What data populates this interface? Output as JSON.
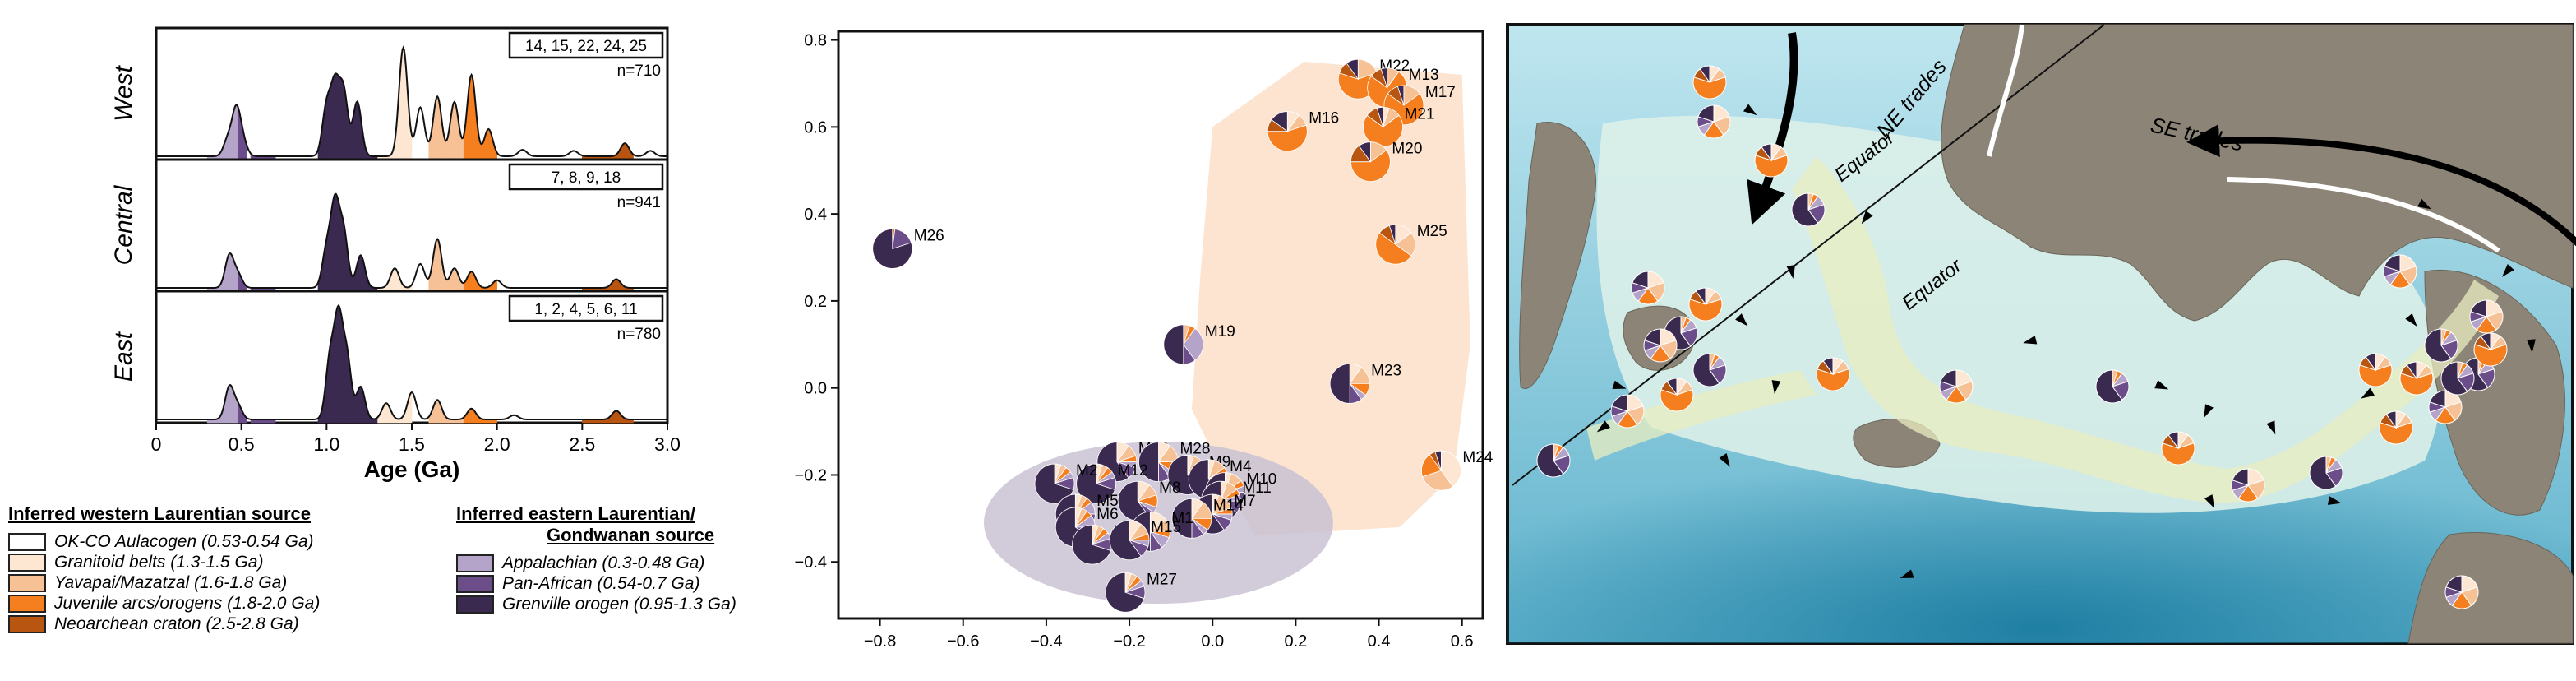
{
  "chart_data": [
    {
      "type": "area",
      "xlabel": "Age (Ga)",
      "xlim": [
        0,
        3.0
      ],
      "x_ticks": [
        "0",
        "0.5",
        "1.0",
        "1.5",
        "2.0",
        "2.5",
        "3.0"
      ],
      "panels": [
        {
          "region": "West",
          "samples": "14, 15, 22, 24, 25",
          "n": "n=710",
          "peaks": [
            [
              0.42,
              0.15
            ],
            [
              0.47,
              0.42
            ],
            [
              0.51,
              0.12
            ],
            [
              1.0,
              0.45
            ],
            [
              1.05,
              0.62
            ],
            [
              1.1,
              0.58
            ],
            [
              1.18,
              0.5
            ],
            [
              1.45,
              1.0
            ],
            [
              1.55,
              0.45
            ],
            [
              1.65,
              0.55
            ],
            [
              1.75,
              0.5
            ],
            [
              1.85,
              0.75
            ],
            [
              1.95,
              0.25
            ],
            [
              2.15,
              0.06
            ],
            [
              2.45,
              0.05
            ],
            [
              2.75,
              0.12
            ],
            [
              2.9,
              0.05
            ]
          ]
        },
        {
          "region": "Central",
          "samples": "7, 8, 9, 18",
          "n": "n=941",
          "peaks": [
            [
              0.43,
              0.3
            ],
            [
              0.48,
              0.12
            ],
            [
              1.0,
              0.35
            ],
            [
              1.05,
              0.75
            ],
            [
              1.1,
              0.5
            ],
            [
              1.2,
              0.3
            ],
            [
              1.4,
              0.18
            ],
            [
              1.55,
              0.22
            ],
            [
              1.65,
              0.45
            ],
            [
              1.75,
              0.18
            ],
            [
              1.85,
              0.15
            ],
            [
              2.0,
              0.07
            ],
            [
              2.7,
              0.08
            ]
          ]
        },
        {
          "region": "East",
          "samples": "1, 2, 4, 5, 6, 11",
          "n": "n=780",
          "peaks": [
            [
              0.43,
              0.3
            ],
            [
              0.48,
              0.12
            ],
            [
              1.02,
              0.55
            ],
            [
              1.07,
              0.9
            ],
            [
              1.12,
              0.55
            ],
            [
              1.2,
              0.3
            ],
            [
              1.35,
              0.15
            ],
            [
              1.5,
              0.25
            ],
            [
              1.65,
              0.18
            ],
            [
              1.85,
              0.1
            ],
            [
              2.1,
              0.04
            ],
            [
              2.7,
              0.08
            ]
          ]
        }
      ],
      "legend_west_title": "Inferred western Laurentian source",
      "legend_east_title_1": "Inferred eastern Laurentian/",
      "legend_east_title_2": "Gondwanan source",
      "legend_west": [
        {
          "label": "OK-CO Aulacogen (0.53-0.54 Ga)",
          "color": "#ffffff"
        },
        {
          "label": "Granitoid belts (1.3-1.5 Ga)",
          "color": "#fde6d2"
        },
        {
          "label": "Yavapai/Mazatzal (1.6-1.8 Ga)",
          "color": "#f7c196"
        },
        {
          "label": "Juvenile arcs/orogens (1.8-2.0 Ga)",
          "color": "#f57f1f"
        },
        {
          "label": "Neoarchean craton (2.5-2.8 Ga)",
          "color": "#b85510"
        }
      ],
      "legend_east": [
        {
          "label": "Appalachian (0.3-0.48 Ga)",
          "color": "#b5a4c9"
        },
        {
          "label": "Pan-African (0.54-0.7 Ga)",
          "color": "#6b4d8a"
        },
        {
          "label": "Grenville orogen (0.95-1.3 Ga)",
          "color": "#3b2a50"
        }
      ]
    },
    {
      "type": "scatter",
      "xlim": [
        -0.9,
        0.65
      ],
      "ylim": [
        -0.53,
        0.82
      ],
      "x_ticks": [
        -0.8,
        -0.6,
        -0.4,
        -0.2,
        0.0,
        0.2,
        0.4,
        0.6
      ],
      "y_ticks": [
        -0.4,
        -0.2,
        0.0,
        0.2,
        0.4,
        0.6,
        0.8
      ],
      "points": [
        {
          "label": "M22",
          "x": 0.35,
          "y": 0.71,
          "w": [
            0,
            0,
            0.2,
            0.6,
            0.1,
            0,
            0,
            0.1
          ]
        },
        {
          "label": "M13",
          "x": 0.42,
          "y": 0.69,
          "w": [
            0,
            0,
            0.1,
            0.75,
            0.1,
            0,
            0,
            0.05
          ]
        },
        {
          "label": "M17",
          "x": 0.46,
          "y": 0.65,
          "w": [
            0,
            0,
            0.15,
            0.7,
            0.1,
            0,
            0,
            0.05
          ]
        },
        {
          "label": "M16",
          "x": 0.18,
          "y": 0.59,
          "w": [
            0,
            0.1,
            0.1,
            0.55,
            0.1,
            0,
            0,
            0.15
          ]
        },
        {
          "label": "M21",
          "x": 0.41,
          "y": 0.6,
          "w": [
            0,
            0.05,
            0.1,
            0.7,
            0.1,
            0,
            0,
            0.05
          ]
        },
        {
          "label": "M20",
          "x": 0.38,
          "y": 0.52,
          "w": [
            0,
            0,
            0.15,
            0.6,
            0.15,
            0,
            0,
            0.1
          ]
        },
        {
          "label": "M25",
          "x": 0.44,
          "y": 0.33,
          "w": [
            0,
            0.15,
            0.2,
            0.5,
            0.1,
            0,
            0,
            0.05
          ]
        },
        {
          "label": "M26",
          "x": -0.77,
          "y": 0.32,
          "w": [
            0,
            0,
            0,
            0.02,
            0,
            0,
            0.18,
            0.8
          ]
        },
        {
          "label": "M19",
          "x": -0.07,
          "y": 0.1,
          "w": [
            0,
            0,
            0.05,
            0.05,
            0,
            0.3,
            0.1,
            0.5
          ]
        },
        {
          "label": "M23",
          "x": 0.33,
          "y": 0.01,
          "w": [
            0,
            0.1,
            0.15,
            0.1,
            0,
            0.05,
            0.1,
            0.5
          ]
        },
        {
          "label": "M24",
          "x": 0.55,
          "y": -0.19,
          "w": [
            0,
            0.4,
            0.3,
            0.2,
            0.05,
            0,
            0,
            0.05
          ]
        },
        {
          "label": "M18",
          "x": -0.23,
          "y": -0.17,
          "w": [
            0,
            0.1,
            0.1,
            0.05,
            0,
            0.05,
            0.1,
            0.6
          ]
        },
        {
          "label": "M28",
          "x": -0.13,
          "y": -0.17,
          "w": [
            0,
            0.1,
            0.15,
            0.1,
            0,
            0.05,
            0.1,
            0.5
          ]
        },
        {
          "label": "M12",
          "x": -0.28,
          "y": -0.22,
          "w": [
            0,
            0.05,
            0.05,
            0.05,
            0,
            0.05,
            0.1,
            0.7
          ]
        },
        {
          "label": "M9",
          "x": -0.06,
          "y": -0.2,
          "w": [
            0,
            0.05,
            0.1,
            0.05,
            0,
            0.05,
            0.1,
            0.65
          ]
        },
        {
          "label": "M4",
          "x": -0.01,
          "y": -0.21,
          "w": [
            0,
            0.05,
            0.1,
            0.05,
            0,
            0.05,
            0.1,
            0.65
          ]
        },
        {
          "label": "M10",
          "x": 0.03,
          "y": -0.24,
          "w": [
            0,
            0.05,
            0.1,
            0.05,
            0,
            0.05,
            0.1,
            0.65
          ]
        },
        {
          "label": "M11",
          "x": 0.02,
          "y": -0.26,
          "w": [
            0,
            0.05,
            0.1,
            0.05,
            0,
            0.05,
            0.1,
            0.65
          ]
        },
        {
          "label": "M2",
          "x": -0.38,
          "y": -0.22,
          "w": [
            0,
            0.05,
            0.05,
            0.05,
            0,
            0.05,
            0.1,
            0.7
          ]
        },
        {
          "label": "M8",
          "x": -0.18,
          "y": -0.26,
          "w": [
            0,
            0.1,
            0.1,
            0.1,
            0,
            0.05,
            0.05,
            0.6
          ]
        },
        {
          "label": "M7",
          "x": 0.0,
          "y": -0.29,
          "w": [
            0,
            0.05,
            0.15,
            0.05,
            0,
            0.05,
            0.1,
            0.6
          ]
        },
        {
          "label": "M5",
          "x": -0.33,
          "y": -0.29,
          "w": [
            0,
            0.05,
            0.05,
            0.05,
            0,
            0.1,
            0.1,
            0.65
          ]
        },
        {
          "label": "M6",
          "x": -0.33,
          "y": -0.32,
          "w": [
            0,
            0.05,
            0.05,
            0.05,
            0,
            0.1,
            0.1,
            0.65
          ]
        },
        {
          "label": "M14",
          "x": -0.05,
          "y": -0.3,
          "w": [
            0,
            0.1,
            0.15,
            0.1,
            0,
            0.05,
            0.1,
            0.5
          ]
        },
        {
          "label": "M1",
          "x": -0.15,
          "y": -0.33,
          "w": [
            0,
            0.15,
            0.1,
            0.05,
            0,
            0.1,
            0.1,
            0.5
          ]
        },
        {
          "label": "M3",
          "x": -0.29,
          "y": -0.36,
          "w": [
            0,
            0.05,
            0.05,
            0.05,
            0,
            0.05,
            0.1,
            0.7
          ]
        },
        {
          "label": "M15",
          "x": -0.2,
          "y": -0.35,
          "w": [
            0,
            0.1,
            0.1,
            0.05,
            0,
            0.05,
            0.1,
            0.6
          ]
        },
        {
          "label": "M27",
          "x": -0.21,
          "y": -0.47,
          "w": [
            0,
            0.05,
            0.05,
            0.05,
            0,
            0.05,
            0.1,
            0.7
          ]
        }
      ]
    }
  ],
  "map": {
    "ne_trades": "NE trades",
    "se_trades": "SE trades",
    "equator_1": "Equator",
    "equator_2": "Equator"
  }
}
